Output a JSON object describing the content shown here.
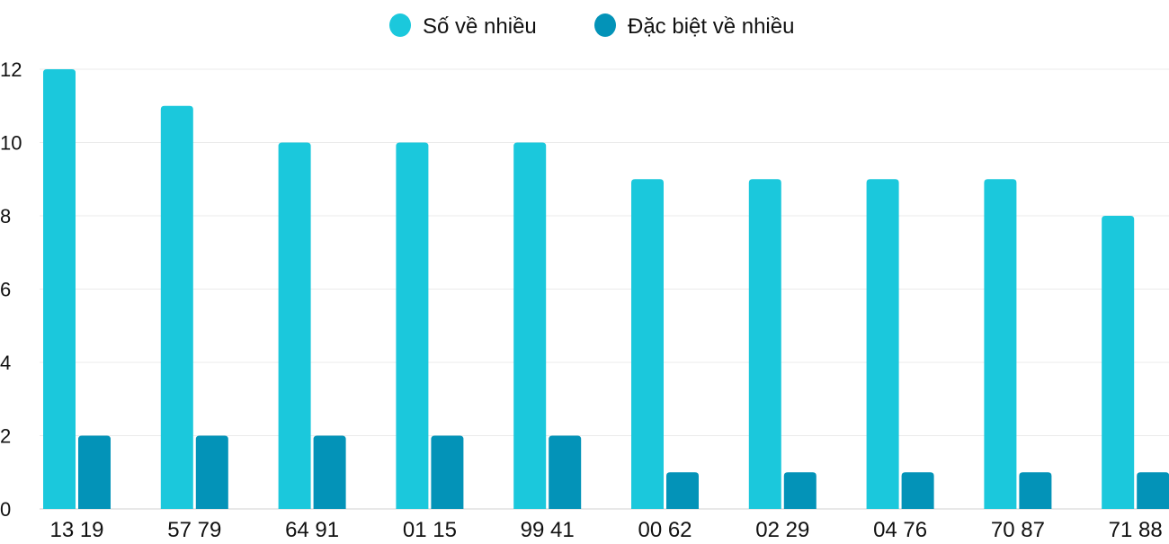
{
  "chart_data": {
    "type": "bar",
    "categories": [
      "13 19",
      "57 79",
      "64 91",
      "01 15",
      "99 41",
      "00 62",
      "02 29",
      "04 76",
      "70 87",
      "71 88"
    ],
    "series": [
      {
        "name": "Số về nhiều",
        "color": "#1bc8dc",
        "values": [
          12,
          11,
          10,
          10,
          10,
          9,
          9,
          9,
          9,
          8
        ]
      },
      {
        "name": "Đặc biệt về nhiều",
        "color": "#0393b8",
        "values": [
          2,
          2,
          2,
          2,
          2,
          1,
          1,
          1,
          1,
          1
        ]
      }
    ],
    "ylim": [
      0,
      12
    ],
    "yticks": [
      "0",
      "2",
      "4",
      "6",
      "8",
      "10",
      "12"
    ],
    "grid": true,
    "legend": "top-center"
  }
}
